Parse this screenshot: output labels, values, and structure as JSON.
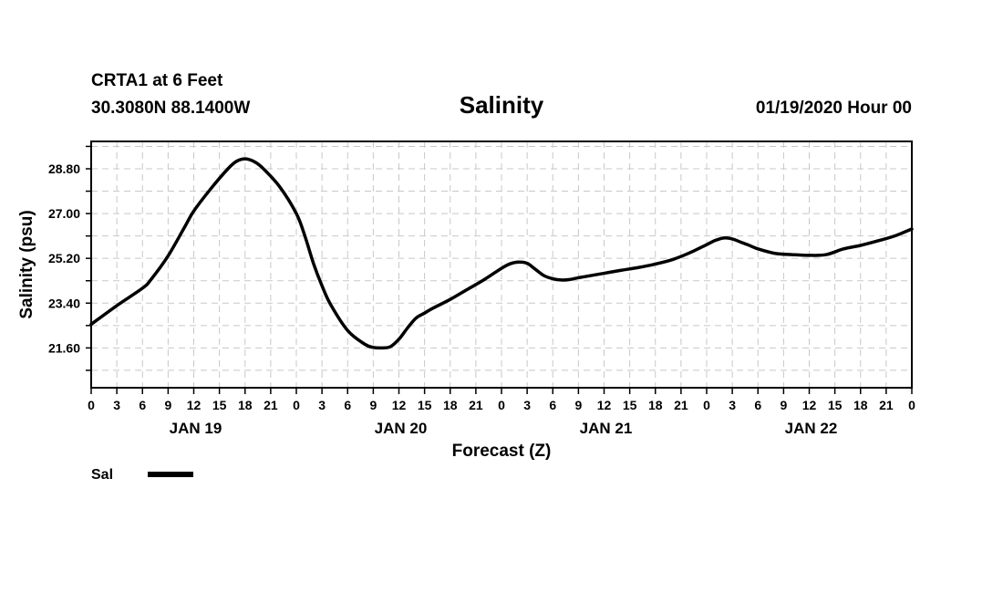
{
  "header": {
    "station": "CRTA1 at 6 Feet",
    "coords": "30.3080N 88.1400W",
    "date": "01/19/2020 Hour 00"
  },
  "chart_data": {
    "type": "line",
    "title": "Salinity",
    "xlabel": "Forecast (Z)",
    "ylabel": "Salinity (psu)",
    "xlim": [
      0,
      96
    ],
    "ylim": [
      20.0,
      29.9
    ],
    "yticks": [
      21.6,
      23.4,
      25.2,
      27.0,
      28.8
    ],
    "ytick_labels": [
      "21.60",
      "23.40",
      "25.20",
      "27.00",
      "28.80"
    ],
    "xtick_step": 3,
    "xtick_labels": [
      "0",
      "3",
      "6",
      "9",
      "12",
      "15",
      "18",
      "21",
      "0",
      "3",
      "6",
      "9",
      "12",
      "15",
      "18",
      "21",
      "0",
      "3",
      "6",
      "9",
      "12",
      "15",
      "18",
      "21",
      "0",
      "3",
      "6",
      "9",
      "12",
      "15",
      "18",
      "21",
      "0"
    ],
    "days": [
      {
        "label": "JAN 19",
        "hour": 12
      },
      {
        "label": "JAN 20",
        "hour": 36
      },
      {
        "label": "JAN 21",
        "hour": 60
      },
      {
        "label": "JAN 22",
        "hour": 84
      }
    ],
    "grid": true,
    "legend_position": "bottom-left",
    "series": [
      {
        "name": "Sal",
        "color": "#000000",
        "x": [
          0,
          3,
          6,
          7,
          9,
          11,
          12,
          14,
          16,
          17,
          18,
          19,
          20,
          22,
          24,
          25,
          26,
          27,
          28,
          30,
          32,
          33,
          34,
          35,
          36,
          37,
          38,
          39,
          40,
          42,
          44,
          46,
          48,
          49,
          50,
          51,
          52,
          53,
          54,
          55,
          56,
          57,
          58,
          60,
          62,
          64,
          66,
          68,
          70,
          72,
          73,
          74,
          75,
          76,
          77,
          78,
          80,
          82,
          84,
          86,
          88,
          90,
          92,
          94,
          96
        ],
        "y": [
          22.55,
          23.3,
          24.0,
          24.35,
          25.3,
          26.5,
          27.1,
          28.0,
          28.8,
          29.1,
          29.2,
          29.1,
          28.85,
          28.1,
          27.0,
          26.1,
          25.0,
          24.1,
          23.35,
          22.3,
          21.75,
          21.62,
          21.6,
          21.65,
          21.95,
          22.4,
          22.8,
          23.0,
          23.2,
          23.55,
          23.95,
          24.35,
          24.8,
          24.98,
          25.05,
          25.0,
          24.75,
          24.5,
          24.38,
          24.33,
          24.35,
          24.42,
          24.48,
          24.6,
          24.72,
          24.83,
          24.97,
          25.15,
          25.42,
          25.75,
          25.92,
          26.02,
          25.98,
          25.85,
          25.72,
          25.58,
          25.4,
          25.35,
          25.32,
          25.35,
          25.58,
          25.72,
          25.9,
          26.1,
          26.38
        ]
      }
    ]
  }
}
